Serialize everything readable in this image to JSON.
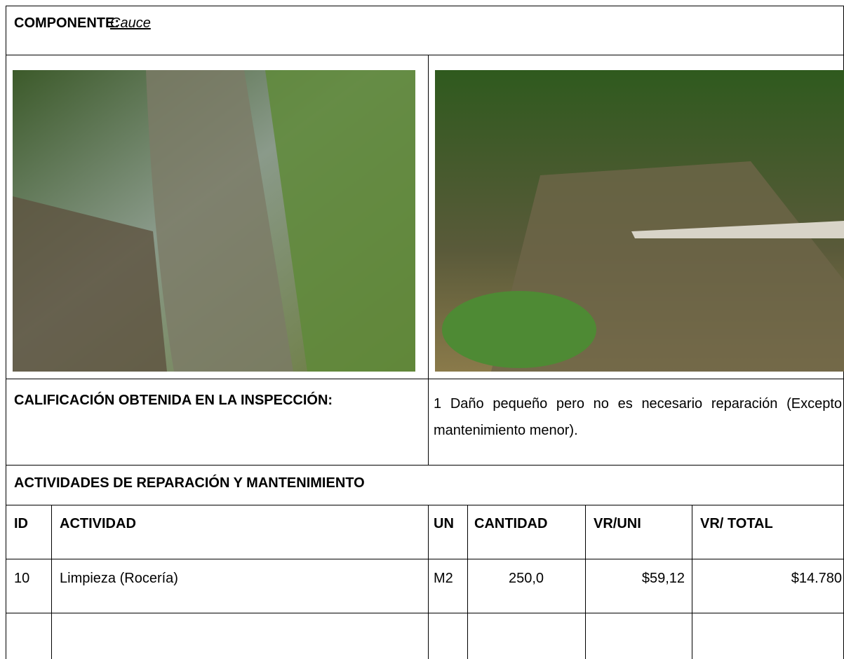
{
  "header": {
    "label": "COMPONENTE:",
    "component": "Cauce"
  },
  "rating": {
    "label": "CALIFICACIÓN OBTENIDA EN LA INSPECCIÓN:",
    "text": "1 Daño pequeño pero no es necesario reparación (Excepto mantenimiento menor)."
  },
  "activities": {
    "title": "ACTIVIDADES DE REPARACIÓN Y MANTENIMIENTO",
    "columns": [
      "ID",
      "ACTIVIDAD",
      "UN",
      "CANTIDAD",
      "VR/UNI",
      "VR/ TOTAL"
    ],
    "rows": [
      [
        "10",
        "Limpieza (Rocería)",
        "M2",
        "250,0",
        "$59,12",
        "$14.780"
      ]
    ]
  }
}
